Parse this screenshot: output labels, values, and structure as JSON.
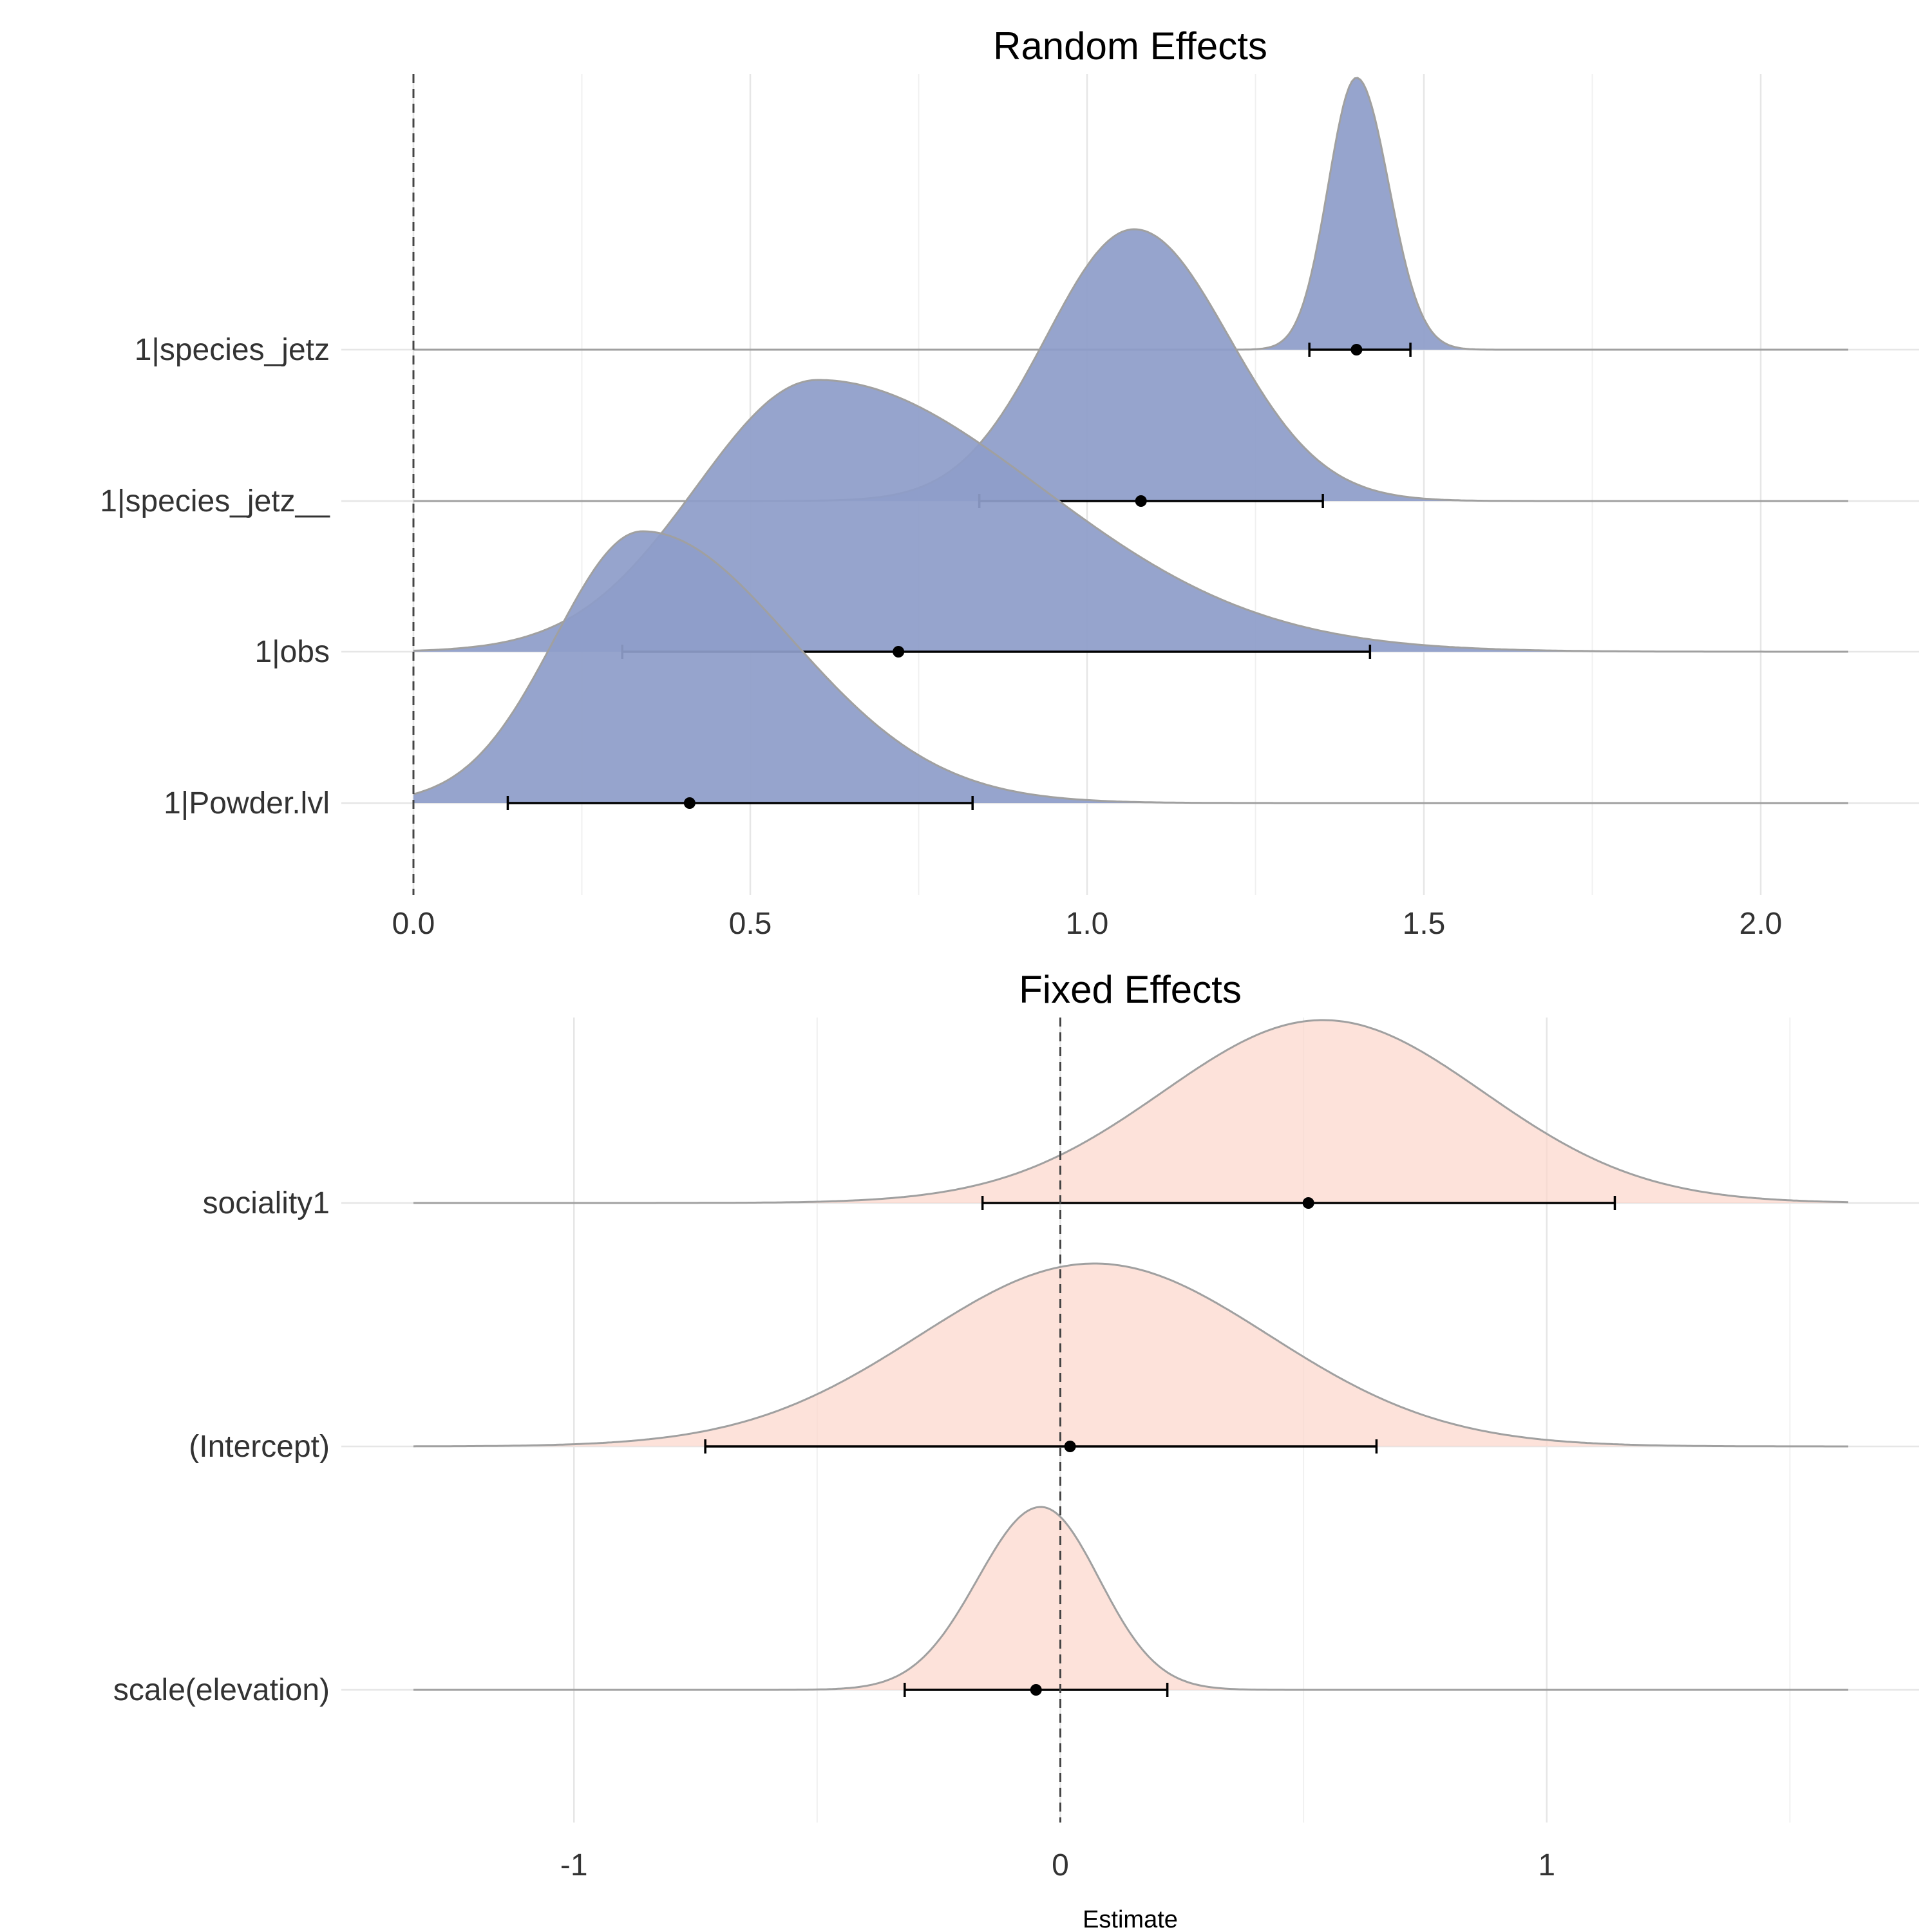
{
  "chart_data": [
    {
      "type": "ridgeline",
      "title": "Random Effects",
      "xlabel": "",
      "ylabel": "",
      "xlim": [
        0,
        2.13
      ],
      "xticks": [
        0.0,
        0.5,
        1.0,
        1.5,
        2.0
      ],
      "xtick_labels": [
        "0.0",
        "0.5",
        "1.0",
        "1.5",
        "2.0"
      ],
      "reference_line": 0,
      "grid": true,
      "fill_color": "#8e9dc9",
      "series": [
        {
          "name": "1|species_jetz",
          "estimate": 1.4,
          "ci": [
            1.33,
            1.48
          ],
          "density": {
            "mode": 1.4,
            "sd_left": 0.042,
            "sd_right": 0.048
          }
        },
        {
          "name": "1|species_jetz__",
          "estimate": 1.08,
          "ci": [
            0.84,
            1.35
          ],
          "density": {
            "mode": 1.07,
            "sd_left": 0.13,
            "sd_right": 0.14
          }
        },
        {
          "name": "1|obs",
          "estimate": 0.72,
          "ci": [
            0.31,
            1.42
          ],
          "density": {
            "mode": 0.6,
            "sd_left": 0.18,
            "sd_right": 0.33
          }
        },
        {
          "name": "1|Powder.lvl",
          "estimate": 0.41,
          "ci": [
            0.14,
            0.83
          ],
          "density": {
            "mode": 0.34,
            "sd_left": 0.13,
            "sd_right": 0.22
          }
        }
      ]
    },
    {
      "type": "ridgeline",
      "title": "Fixed Effects",
      "xlabel": "Estimate",
      "ylabel": "",
      "xlim": [
        -1.33,
        1.62
      ],
      "xticks": [
        -1,
        0,
        1
      ],
      "xtick_labels": [
        "-1",
        "0",
        "1"
      ],
      "reference_line": 0,
      "grid": true,
      "fill_color": "#fcd5ca",
      "series": [
        {
          "name": "sociality1",
          "estimate": 0.51,
          "ci": [
            -0.16,
            1.14
          ],
          "density": {
            "mode": 0.54,
            "sd_left": 0.33,
            "sd_right": 0.33
          }
        },
        {
          "name": "(Intercept)",
          "estimate": 0.02,
          "ci": [
            -0.73,
            0.65
          ],
          "density": {
            "mode": 0.07,
            "sd_left": 0.36,
            "sd_right": 0.36
          }
        },
        {
          "name": "scale(elevation)",
          "estimate": -0.05,
          "ci": [
            -0.32,
            0.22
          ],
          "density": {
            "mode": -0.04,
            "sd_left": 0.13,
            "sd_right": 0.12
          }
        }
      ]
    }
  ]
}
